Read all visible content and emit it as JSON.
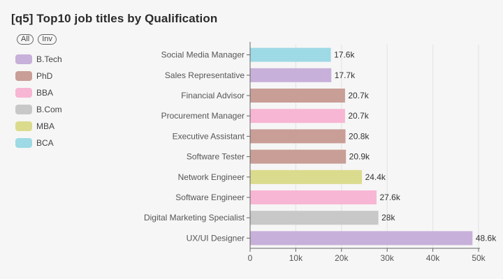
{
  "header": {
    "title": "[q5] Top10 job titles by Qualification"
  },
  "legend_controls": {
    "all_label": "All",
    "inv_label": "Inv"
  },
  "legend": [
    {
      "label": "B.Tech",
      "color": "#c7b0d9"
    },
    {
      "label": "PhD",
      "color": "#c89e96"
    },
    {
      "label": "BBA",
      "color": "#f7b6d3"
    },
    {
      "label": "B.Com",
      "color": "#c8c8c8"
    },
    {
      "label": "MBA",
      "color": "#dbdb8d"
    },
    {
      "label": "BCA",
      "color": "#9edae5"
    }
  ],
  "chart_data": {
    "type": "bar",
    "orientation": "horizontal",
    "categories": [
      "Social Media Manager",
      "Sales Representative",
      "Financial Advisor",
      "Procurement Manager",
      "Executive Assistant",
      "Software Tester",
      "Network Engineer",
      "Software Engineer",
      "Digital Marketing Specialist",
      "UX/UI Designer"
    ],
    "values": [
      17600,
      17700,
      20700,
      20700,
      20800,
      20900,
      24400,
      27600,
      28000,
      48600
    ],
    "value_labels": [
      "17.6k",
      "17.7k",
      "20.7k",
      "20.7k",
      "20.8k",
      "20.9k",
      "24.4k",
      "27.6k",
      "28k",
      "48.6k"
    ],
    "series_of_bar": [
      "BCA",
      "B.Tech",
      "PhD",
      "BBA",
      "PhD",
      "PhD",
      "MBA",
      "BBA",
      "B.Com",
      "B.Tech"
    ],
    "xlim": [
      0,
      50000
    ],
    "x_ticks": [
      0,
      10000,
      20000,
      30000,
      40000,
      50000
    ],
    "x_tick_labels": [
      "0",
      "10k",
      "20k",
      "30k",
      "40k",
      "50k"
    ],
    "grid": "vertical",
    "legend_position": "top-left"
  }
}
